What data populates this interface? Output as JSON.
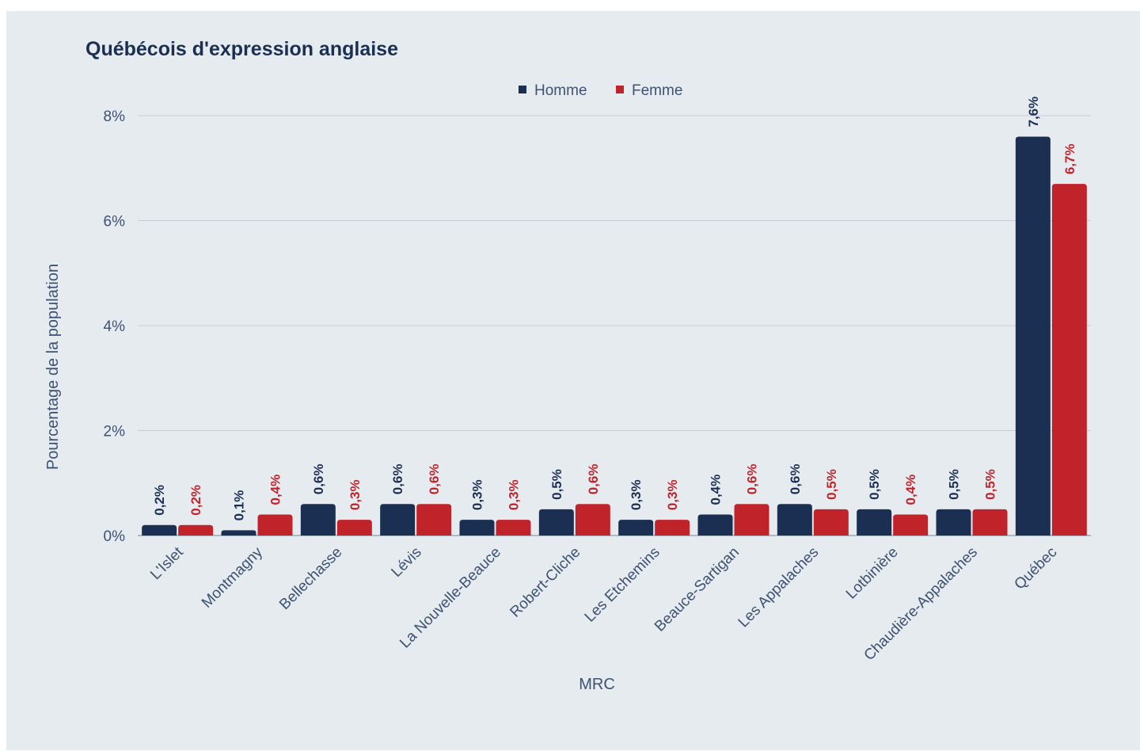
{
  "chart_data": {
    "type": "bar",
    "title": "Québécois d'expression anglaise",
    "xlabel": "MRC",
    "ylabel": "Pourcentage de la population",
    "categories": [
      "L'Islet",
      "Montmagny",
      "Bellechasse",
      "Lévis",
      "La Nouvelle-Beauce",
      "Robert-Cliche",
      "Les Etchemins",
      "Beauce-Sartigan",
      "Les Appalaches",
      "Lotbinière",
      "Chaudière-Appalaches",
      "Québec"
    ],
    "series": [
      {
        "name": "Homme",
        "color": "#1b2f52",
        "values": [
          0.2,
          0.1,
          0.6,
          0.6,
          0.3,
          0.5,
          0.3,
          0.4,
          0.6,
          0.5,
          0.5,
          7.6
        ],
        "labels": [
          "0,2%",
          "0,1%",
          "0,6%",
          "0,6%",
          "0,3%",
          "0,5%",
          "0,3%",
          "0,4%",
          "0,6%",
          "0,5%",
          "0,5%",
          "7,6%"
        ]
      },
      {
        "name": "Femme",
        "color": "#c1232b",
        "values": [
          0.2,
          0.4,
          0.3,
          0.6,
          0.3,
          0.6,
          0.3,
          0.6,
          0.5,
          0.4,
          0.5,
          6.7
        ],
        "labels": [
          "0,2%",
          "0,4%",
          "0,3%",
          "0,6%",
          "0,3%",
          "0,6%",
          "0,3%",
          "0,6%",
          "0,5%",
          "0,4%",
          "0,5%",
          "6,7%"
        ]
      }
    ],
    "ylim": [
      0,
      8
    ],
    "yticks": [
      0,
      2,
      4,
      6,
      8
    ],
    "ytick_labels": [
      "0%",
      "2%",
      "4%",
      "6%",
      "8%"
    ],
    "grid": true,
    "legend_position": "top-center",
    "colors": {
      "background": "#e6ebf0",
      "title": "#1b2f52",
      "axis_text": "#3d5270",
      "gridline": "#c4ccd6"
    }
  }
}
